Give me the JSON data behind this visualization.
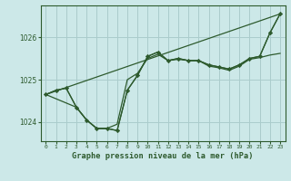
{
  "title": "Graphe pression niveau de la mer (hPa)",
  "background_color": "#cce8e8",
  "grid_color": "#aacccc",
  "line_color": "#2d5a2d",
  "marker_color": "#2d5a2d",
  "xlim": [
    -0.5,
    23.5
  ],
  "ylim": [
    1023.55,
    1026.75
  ],
  "xticks": [
    0,
    1,
    2,
    3,
    4,
    5,
    6,
    7,
    8,
    9,
    10,
    11,
    12,
    13,
    14,
    15,
    16,
    17,
    18,
    19,
    20,
    21,
    22,
    23
  ],
  "yticks": [
    1024,
    1025,
    1026
  ],
  "series_main": {
    "x": [
      0,
      1,
      2,
      3,
      4,
      5,
      6,
      7,
      8,
      9,
      10,
      11,
      12,
      13,
      14,
      15,
      16,
      17,
      18,
      19,
      20,
      21,
      22,
      23
    ],
    "y": [
      1024.65,
      1024.75,
      1024.8,
      1024.35,
      1024.05,
      1023.85,
      1023.85,
      1023.8,
      1024.75,
      1025.1,
      1025.55,
      1025.65,
      1025.45,
      1025.5,
      1025.45,
      1025.45,
      1025.35,
      1025.3,
      1025.25,
      1025.35,
      1025.5,
      1025.55,
      1026.1,
      1026.55
    ]
  },
  "series_upper": {
    "x": [
      0,
      3,
      4,
      5,
      6,
      7,
      8,
      9,
      10,
      11,
      12,
      13,
      14,
      15,
      16,
      17,
      18,
      19,
      20,
      21,
      22,
      23
    ],
    "y": [
      1024.65,
      1024.35,
      1024.05,
      1023.85,
      1023.85,
      1023.8,
      1024.75,
      1025.1,
      1025.55,
      1025.65,
      1025.45,
      1025.5,
      1025.45,
      1025.45,
      1025.35,
      1025.3,
      1025.25,
      1025.35,
      1025.5,
      1025.55,
      1026.1,
      1026.55
    ]
  },
  "series_trend": {
    "x": [
      0,
      23
    ],
    "y": [
      1024.65,
      1026.55
    ]
  },
  "series_flat": {
    "x": [
      0,
      1,
      2,
      3,
      4,
      5,
      6,
      7,
      8,
      9,
      10,
      11,
      12,
      13,
      14,
      15,
      16,
      17,
      18,
      19,
      20,
      21,
      22,
      23
    ],
    "y": [
      1024.65,
      1024.75,
      1024.8,
      1024.35,
      1024.05,
      1023.85,
      1023.85,
      1023.95,
      1025.0,
      1025.15,
      1025.5,
      1025.6,
      1025.45,
      1025.48,
      1025.45,
      1025.45,
      1025.32,
      1025.28,
      1025.22,
      1025.32,
      1025.48,
      1025.52,
      1025.58,
      1025.62
    ]
  }
}
